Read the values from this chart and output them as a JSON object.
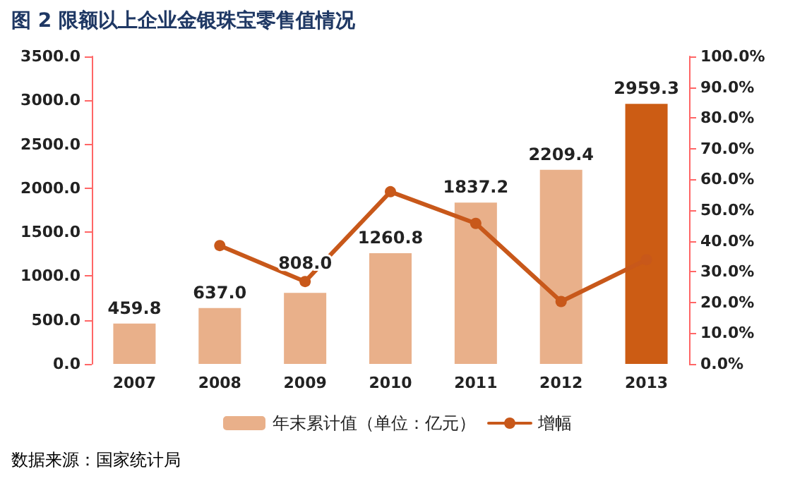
{
  "chart_data": {
    "type": "bar",
    "title": "图 2    限额以上企业金银珠宝零售值情况",
    "annotations": [
      "数据来源：国家统计局"
    ],
    "categories": [
      "2007",
      "2008",
      "2009",
      "2010",
      "2011",
      "2012",
      "2013"
    ],
    "series": [
      {
        "name": "年末累计值（单位：亿元）",
        "color": "#e9b08a",
        "colors": [
          "#e9b08a",
          "#e9b08a",
          "#e9b08a",
          "#e9b08a",
          "#e9b08a",
          "#e9b08a",
          "#cc5c14"
        ],
        "values": [
          459.8,
          637.0,
          808.0,
          1260.8,
          1837.2,
          2209.4,
          2959.3
        ],
        "value_labels": [
          "459.8",
          "637.0",
          "808.0",
          "1260.8",
          "1837.2",
          "2209.4",
          "2959.3"
        ]
      },
      {
        "name": "增幅",
        "type": "line",
        "axis": "y2",
        "color": "#c8581a",
        "marker": "circle",
        "values": [
          null,
          38.5,
          26.8,
          56.0,
          45.7,
          20.3,
          33.9
        ]
      }
    ],
    "ylim": [
      0,
      3500
    ],
    "yticks": [
      {
        "value": 0,
        "label": "0.0"
      },
      {
        "value": 500,
        "label": "500.0"
      },
      {
        "value": 1000,
        "label": "1000.0"
      },
      {
        "value": 1500,
        "label": "1500.0"
      },
      {
        "value": 2000,
        "label": "2000.0"
      },
      {
        "value": 2500,
        "label": "2500.0"
      },
      {
        "value": 3000,
        "label": "3000.0"
      },
      {
        "value": 3500,
        "label": "3500.0"
      }
    ],
    "y2lim": [
      0,
      100
    ],
    "y2ticks": [
      {
        "value": 0,
        "label": "0.0%"
      },
      {
        "value": 10,
        "label": "10.0%"
      },
      {
        "value": 20,
        "label": "20.0%"
      },
      {
        "value": 30,
        "label": "30.0%"
      },
      {
        "value": 40,
        "label": "40.0%"
      },
      {
        "value": 50,
        "label": "50.0%"
      },
      {
        "value": 60,
        "label": "60.0%"
      },
      {
        "value": 70,
        "label": "70.0%"
      },
      {
        "value": 80,
        "label": "80.0%"
      },
      {
        "value": 90,
        "label": "90.0%"
      },
      {
        "value": 100,
        "label": "100.0%"
      }
    ],
    "grid": false,
    "legend": "bottom"
  }
}
